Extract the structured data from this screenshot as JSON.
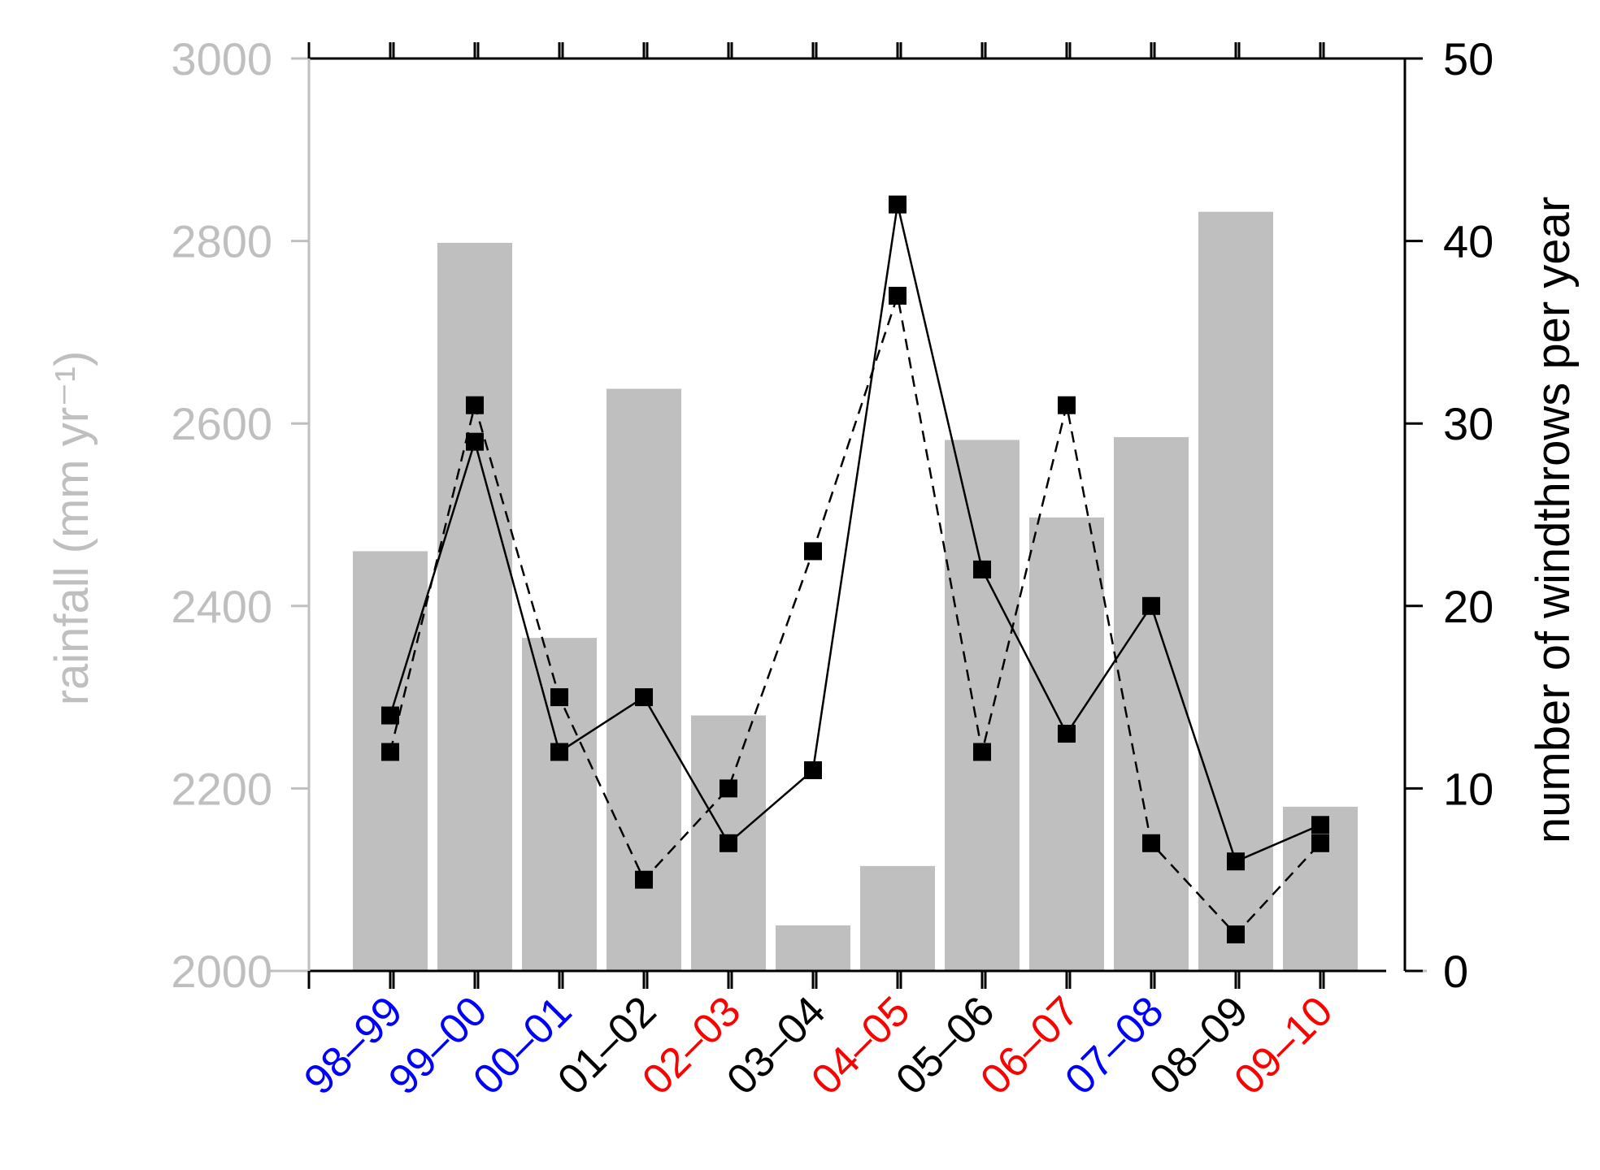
{
  "chart_data": {
    "type": "bar",
    "categories": [
      "98–99",
      "99–00",
      "00–01",
      "01–02",
      "02–03",
      "03–04",
      "04–05",
      "05–06",
      "06–07",
      "07–08",
      "08–09",
      "09–10"
    ],
    "category_colors": [
      "#0000ff",
      "#0000ff",
      "#0000ff",
      "#000000",
      "#ff0000",
      "#000000",
      "#ff0000",
      "#000000",
      "#ff0000",
      "#0000ff",
      "#000000",
      "#ff0000"
    ],
    "bar_series": {
      "axis": "left",
      "color": "#bfbfbf",
      "values": [
        2460,
        2798,
        2365,
        2638,
        2280,
        2050,
        2115,
        2582,
        2497,
        2585,
        2832,
        2180
      ]
    },
    "line_series": [
      {
        "axis": "right",
        "style": "solid",
        "marker": "square",
        "color": "#000000",
        "values": [
          14,
          29,
          12,
          15,
          7,
          11,
          42,
          22,
          13,
          20,
          6,
          8
        ]
      },
      {
        "axis": "right",
        "style": "dashed",
        "marker": "square",
        "color": "#000000",
        "values": [
          12,
          31,
          15,
          5,
          10,
          23,
          37,
          12,
          31,
          7,
          2,
          7
        ]
      }
    ],
    "ylabel_left": "rainfall (mm yr⁻¹)",
    "ylabel_right": "number of windthrows per year",
    "ylim_left": [
      2000,
      3000
    ],
    "yticks_left": [
      2000,
      2200,
      2400,
      2600,
      2800,
      3000
    ],
    "ylim_right": [
      0,
      50
    ],
    "yticks_right": [
      0,
      10,
      20,
      30,
      40,
      50
    ],
    "grid": false
  }
}
